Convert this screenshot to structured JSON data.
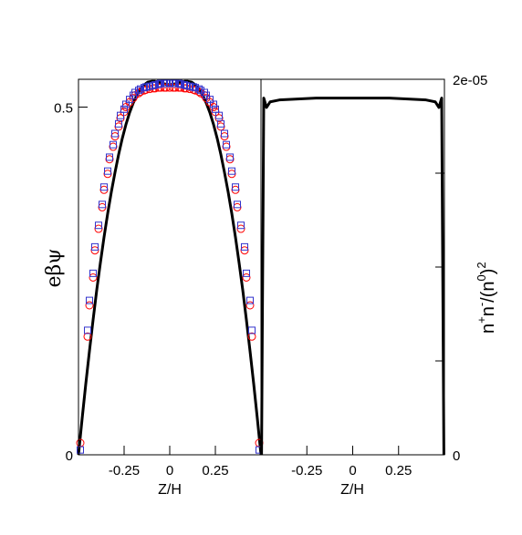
{
  "chart_data": [
    {
      "type": "scatter",
      "xlabel": "Z/H",
      "ylabel": "eβψ",
      "xlim": [
        -0.5,
        0.5
      ],
      "ylim": [
        0,
        0.54
      ],
      "xticks": [
        -0.25,
        0,
        0.25
      ],
      "xtick_labels": [
        "-0.25",
        "0",
        "0.25"
      ],
      "yticks": [
        0,
        0.5
      ],
      "ytick_labels": [
        "0",
        "0.5"
      ],
      "grid": false,
      "series": [
        {
          "marker": "line",
          "color": "#000000",
          "x": [
            -0.5,
            -0.48,
            -0.46,
            -0.44,
            -0.42,
            -0.4,
            -0.38,
            -0.36,
            -0.34,
            -0.32,
            -0.3,
            -0.28,
            -0.26,
            -0.24,
            -0.22,
            -0.2,
            -0.18,
            -0.16,
            -0.14,
            -0.12,
            -0.1,
            -0.08,
            -0.06,
            -0.04,
            -0.02,
            0.0,
            0.02,
            0.04,
            0.06,
            0.08,
            0.1,
            0.12,
            0.14,
            0.16,
            0.18,
            0.2,
            0.22,
            0.24,
            0.26,
            0.28,
            0.3,
            0.32,
            0.34,
            0.36,
            0.38,
            0.4,
            0.42,
            0.44,
            0.46,
            0.48,
            0.5
          ],
          "y": [
            0.0,
            0.052,
            0.102,
            0.149,
            0.194,
            0.237,
            0.276,
            0.313,
            0.347,
            0.378,
            0.406,
            0.432,
            0.455,
            0.475,
            0.492,
            0.506,
            0.517,
            0.526,
            0.532,
            0.536,
            0.537,
            0.537,
            0.536,
            0.534,
            0.533,
            0.532,
            0.533,
            0.534,
            0.536,
            0.537,
            0.537,
            0.536,
            0.532,
            0.526,
            0.517,
            0.506,
            0.492,
            0.475,
            0.455,
            0.432,
            0.406,
            0.378,
            0.347,
            0.313,
            0.276,
            0.237,
            0.194,
            0.149,
            0.102,
            0.052,
            0.0
          ]
        },
        {
          "marker": "circle",
          "color": "#ff0000",
          "x": [
            -0.49,
            -0.45,
            -0.44,
            -0.42,
            -0.41,
            -0.39,
            -0.37,
            -0.36,
            -0.34,
            -0.33,
            -0.31,
            -0.3,
            -0.28,
            -0.27,
            -0.25,
            -0.24,
            -0.22,
            -0.2,
            -0.19,
            -0.17,
            -0.16,
            -0.14,
            -0.13,
            -0.11,
            -0.09,
            -0.08,
            -0.06,
            -0.05,
            -0.03,
            -0.02,
            0.0,
            0.02,
            0.03,
            0.05,
            0.06,
            0.08,
            0.09,
            0.11,
            0.13,
            0.14,
            0.16,
            0.17,
            0.19,
            0.2,
            0.22,
            0.24,
            0.25,
            0.27,
            0.28,
            0.3,
            0.31,
            0.33,
            0.34,
            0.36,
            0.37,
            0.39,
            0.41,
            0.42,
            0.44,
            0.45,
            0.49
          ],
          "y": [
            0.017,
            0.17,
            0.215,
            0.255,
            0.294,
            0.325,
            0.356,
            0.381,
            0.404,
            0.425,
            0.443,
            0.458,
            0.472,
            0.484,
            0.493,
            0.5,
            0.507,
            0.513,
            0.517,
            0.52,
            0.522,
            0.524,
            0.525,
            0.526,
            0.527,
            0.527,
            0.528,
            0.528,
            0.528,
            0.528,
            0.528,
            0.528,
            0.528,
            0.528,
            0.528,
            0.527,
            0.527,
            0.526,
            0.525,
            0.524,
            0.522,
            0.52,
            0.517,
            0.513,
            0.507,
            0.5,
            0.493,
            0.484,
            0.472,
            0.458,
            0.443,
            0.425,
            0.404,
            0.381,
            0.356,
            0.325,
            0.294,
            0.255,
            0.215,
            0.17,
            0.017
          ]
        },
        {
          "marker": "square",
          "color": "#3333cc",
          "x": [
            -0.49,
            -0.45,
            -0.44,
            -0.42,
            -0.41,
            -0.39,
            -0.37,
            -0.36,
            -0.34,
            -0.33,
            -0.31,
            -0.3,
            -0.28,
            -0.27,
            -0.25,
            -0.24,
            -0.22,
            -0.2,
            -0.19,
            -0.17,
            -0.16,
            -0.14,
            -0.13,
            -0.11,
            -0.09,
            -0.08,
            -0.06,
            -0.05,
            -0.03,
            -0.02,
            0.0,
            0.02,
            0.03,
            0.05,
            0.06,
            0.08,
            0.09,
            0.11,
            0.13,
            0.14,
            0.16,
            0.17,
            0.19,
            0.2,
            0.22,
            0.24,
            0.25,
            0.27,
            0.28,
            0.3,
            0.31,
            0.33,
            0.34,
            0.36,
            0.37,
            0.39,
            0.41,
            0.42,
            0.44,
            0.45,
            0.49
          ],
          "y": [
            0.007,
            0.179,
            0.222,
            0.261,
            0.299,
            0.33,
            0.36,
            0.385,
            0.408,
            0.428,
            0.446,
            0.462,
            0.476,
            0.488,
            0.497,
            0.504,
            0.511,
            0.517,
            0.521,
            0.524,
            0.526,
            0.528,
            0.529,
            0.53,
            0.531,
            0.532,
            0.533,
            0.534,
            0.534,
            0.534,
            0.535,
            0.534,
            0.534,
            0.534,
            0.533,
            0.532,
            0.531,
            0.53,
            0.529,
            0.528,
            0.526,
            0.524,
            0.521,
            0.517,
            0.511,
            0.504,
            0.497,
            0.488,
            0.476,
            0.462,
            0.446,
            0.428,
            0.408,
            0.385,
            0.36,
            0.33,
            0.299,
            0.261,
            0.222,
            0.179,
            0.007
          ]
        }
      ]
    },
    {
      "type": "line",
      "xlabel": "Z/H",
      "ylabel": "n⁺n⁻/(n⁰)²",
      "ylabel_parts": {
        "n1": "n",
        "sup1": "+",
        "n2": "n",
        "sup2": "-",
        "mid": "/(n",
        "sup3": "0",
        "close": ")",
        "sup4": "2"
      },
      "xlim": [
        -0.5,
        0.5
      ],
      "ylim": [
        0,
        2e-05
      ],
      "xticks": [
        -0.25,
        0,
        0.25
      ],
      "xtick_labels": [
        "-0.25",
        "0",
        "0.25"
      ],
      "yticks": [
        0,
        5e-06,
        1e-05,
        1.5e-05,
        2e-05
      ],
      "ytick_labels": [
        "0",
        "",
        "",
        "",
        "2e-05"
      ],
      "y_axis_side": "right",
      "grid": false,
      "series": [
        {
          "color": "#000000",
          "x": [
            -0.497,
            -0.485,
            -0.47,
            -0.45,
            -0.4,
            -0.3,
            -0.2,
            -0.1,
            0.0,
            0.1,
            0.2,
            0.3,
            0.4,
            0.45,
            0.47,
            0.485,
            0.497
          ],
          "y": [
            0.0,
            1.9e-05,
            1.85e-05,
            1.88e-05,
            1.89e-05,
            1.895e-05,
            1.9e-05,
            1.9e-05,
            1.9e-05,
            1.9e-05,
            1.9e-05,
            1.895e-05,
            1.89e-05,
            1.88e-05,
            1.85e-05,
            1.9e-05,
            0.0
          ]
        }
      ]
    }
  ]
}
